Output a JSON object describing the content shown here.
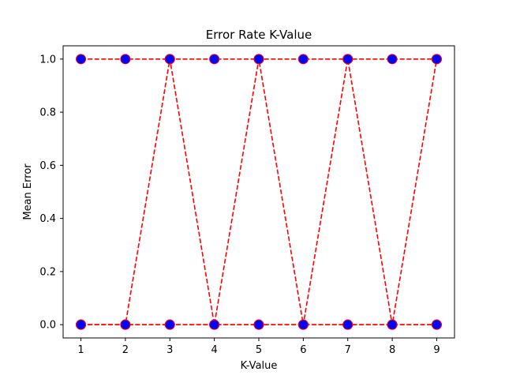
{
  "chart_data": {
    "type": "line",
    "title": "Error Rate K-Value",
    "xlabel": "K-Value",
    "ylabel": "Mean Error",
    "x": [
      1,
      2,
      3,
      4,
      5,
      6,
      7,
      8,
      9
    ],
    "xticks": [
      "1",
      "2",
      "3",
      "4",
      "5",
      "6",
      "7",
      "8",
      "9"
    ],
    "yticks": [
      "0.0",
      "0.2",
      "0.4",
      "0.6",
      "0.8",
      "1.0"
    ],
    "xlim": [
      0.6,
      9.4
    ],
    "ylim": [
      -0.05,
      1.05
    ],
    "grid": false,
    "legend": "none",
    "series": [
      {
        "values": [
          1,
          1,
          1,
          1,
          1,
          1,
          1,
          1,
          1
        ]
      },
      {
        "values": [
          0,
          0,
          0,
          0,
          0,
          0,
          0,
          0,
          0
        ]
      },
      {
        "values": [
          0,
          0,
          1,
          0,
          1,
          0,
          1,
          0,
          1
        ]
      },
      {
        "values": [
          0,
          0,
          0,
          0,
          0,
          0,
          0,
          0,
          0
        ]
      }
    ],
    "style": {
      "line_color": "#ff0000",
      "line_style": "dashed",
      "marker": "circle",
      "marker_face_color": "#0000ff",
      "marker_edge_color": "#ff0000"
    }
  }
}
